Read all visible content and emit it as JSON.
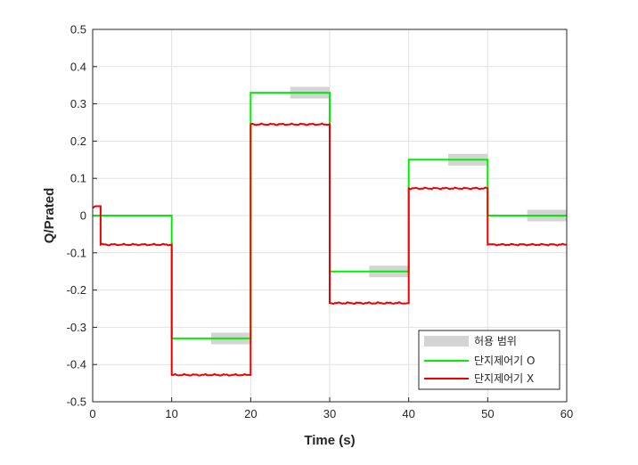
{
  "chart_data": {
    "type": "line",
    "xlabel": "Time (s)",
    "ylabel": "Q/Prated",
    "xlim": [
      0,
      60
    ],
    "ylim": [
      -0.5,
      0.5
    ],
    "xticks": [
      "0",
      "10",
      "20",
      "30",
      "40",
      "50",
      "60"
    ],
    "yticks": [
      "0.5",
      "0.4",
      "0.3",
      "0.2",
      "0.1",
      "0",
      "-0.1",
      "-0.2",
      "-0.3",
      "-0.4",
      "-0.5"
    ],
    "grid": true,
    "legend_position": "bottom-right",
    "tolerance": {
      "name": "허용 범위",
      "color": "#d4d4d4",
      "bands": [
        {
          "x": [
            15,
            20
          ],
          "y": -0.33
        },
        {
          "x": [
            25,
            30
          ],
          "y": 0.33
        },
        {
          "x": [
            35,
            40
          ],
          "y": -0.15
        },
        {
          "x": [
            45,
            50
          ],
          "y": 0.15
        },
        {
          "x": [
            55,
            60
          ],
          "y": 0
        }
      ]
    },
    "series": [
      {
        "name": "단지제어기 O",
        "color": "#00ee00",
        "x": [
          0,
          1,
          1,
          10,
          10,
          20,
          20,
          30,
          30,
          40,
          40,
          50,
          50,
          60
        ],
        "y": [
          0,
          0,
          0,
          0,
          -0.33,
          -0.33,
          0.33,
          0.33,
          -0.15,
          -0.15,
          0.15,
          0.15,
          0,
          0
        ]
      },
      {
        "name": "단지제어기 X",
        "color": "#ee0000",
        "x": [
          0,
          0.3,
          0.9,
          1,
          1,
          10,
          10,
          20,
          20,
          30,
          30,
          40,
          40,
          50,
          50,
          60
        ],
        "y": [
          0.02,
          0.025,
          0.025,
          0.025,
          -0.078,
          -0.078,
          -0.428,
          -0.428,
          0.245,
          0.245,
          -0.235,
          -0.235,
          0.073,
          0.073,
          -0.078,
          -0.078
        ]
      }
    ]
  }
}
